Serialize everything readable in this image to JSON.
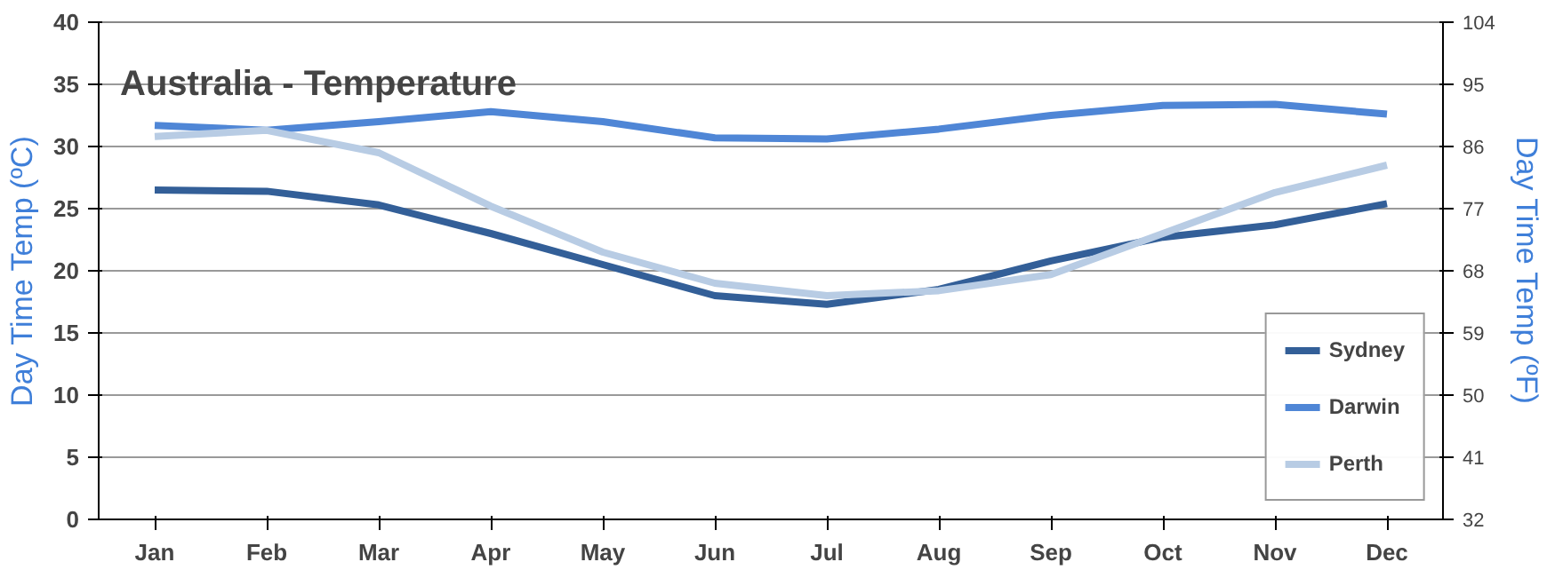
{
  "chart_data": {
    "type": "line",
    "title": "Australia - Temperature",
    "ylabel": "Day Time Temp (ºC)",
    "y2label": "Day Time Temp (ºF)",
    "categories": [
      "Jan",
      "Feb",
      "Mar",
      "Apr",
      "May",
      "Jun",
      "Jul",
      "Aug",
      "Sep",
      "Oct",
      "Nov",
      "Dec"
    ],
    "series": [
      {
        "name": "Sydney",
        "color": "#335f98",
        "values": [
          26.5,
          26.4,
          25.3,
          23,
          20.5,
          18,
          17.3,
          18.5,
          20.8,
          22.7,
          23.7,
          25.4
        ]
      },
      {
        "name": "Darwin",
        "color": "#4f86d6",
        "values": [
          31.7,
          31.3,
          32,
          32.8,
          32,
          30.7,
          30.6,
          31.4,
          32.5,
          33.3,
          33.4,
          32.6
        ]
      },
      {
        "name": "Perth",
        "color": "#b8cce4",
        "values": [
          30.8,
          31.3,
          29.5,
          25.2,
          21.5,
          19,
          18,
          18.4,
          19.7,
          23,
          26.3,
          28.5
        ]
      }
    ],
    "ylim": [
      0,
      40
    ],
    "yticks": [
      0,
      5,
      10,
      15,
      20,
      25,
      30,
      35,
      40
    ],
    "y2lim": [
      32,
      104
    ],
    "y2ticks": [
      32,
      41,
      50,
      59,
      68,
      77,
      86,
      95,
      104
    ],
    "grid": "y",
    "legend": "bottom right",
    "marker": "none",
    "line_style": "solid"
  }
}
